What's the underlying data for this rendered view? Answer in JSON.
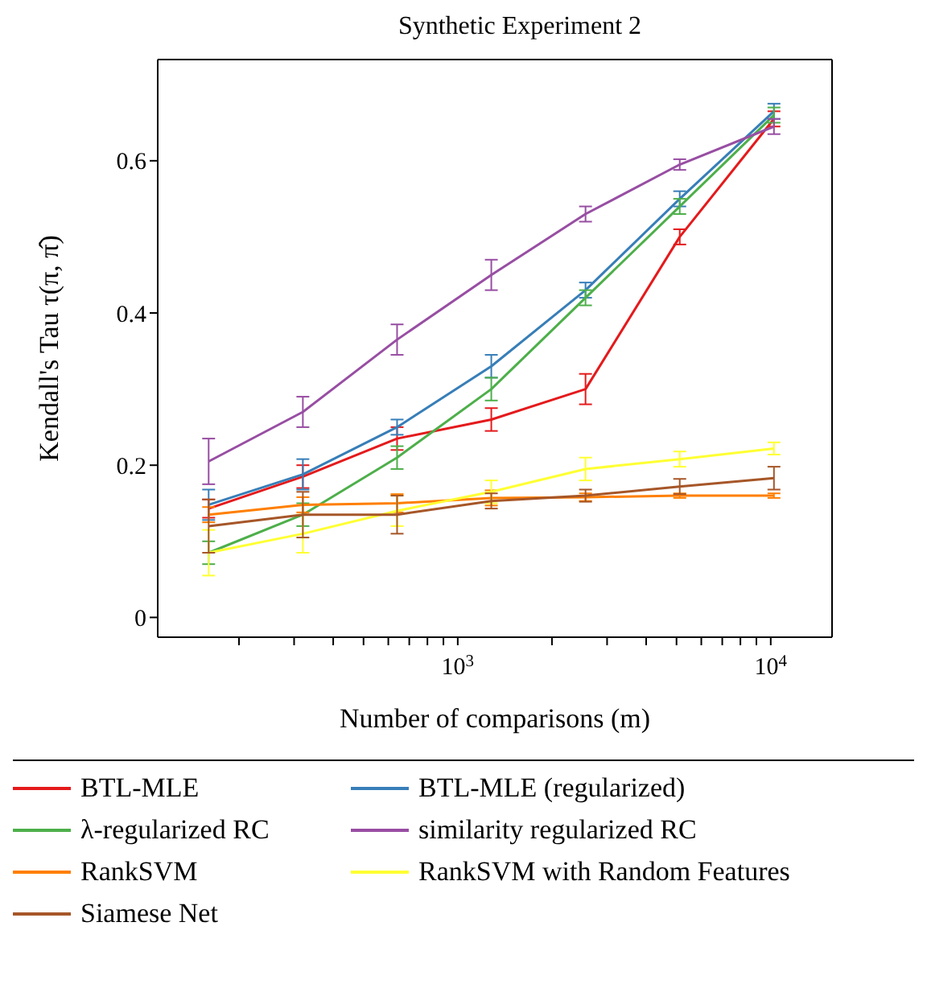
{
  "chart_data": {
    "type": "line",
    "title": "Synthetic Experiment 2",
    "xlabel": "Number of comparisons (m)",
    "ylabel": "Kendall's Tau τ(π, π̂)",
    "x": [
      160,
      320,
      640,
      1280,
      2560,
      5120,
      10240
    ],
    "log": "x",
    "xlim": [
      110,
      15700
    ],
    "xticks": [
      {
        "value": 200,
        "label": null
      },
      {
        "value": 300,
        "label": null
      },
      {
        "value": 400,
        "label": null
      },
      {
        "value": 500,
        "label": null
      },
      {
        "value": 600,
        "label": null
      },
      {
        "value": 700,
        "label": null
      },
      {
        "value": 800,
        "label": null
      },
      {
        "value": 900,
        "label": null
      },
      {
        "value": 1000,
        "label": "10$^{3}$"
      },
      {
        "value": 2000,
        "label": null
      },
      {
        "value": 3000,
        "label": null
      },
      {
        "value": 4000,
        "label": null
      },
      {
        "value": 5000,
        "label": null
      },
      {
        "value": 6000,
        "label": null
      },
      {
        "value": 7000,
        "label": null
      },
      {
        "value": 8000,
        "label": null
      },
      {
        "value": 9000,
        "label": null
      },
      {
        "value": 10000,
        "label": "10$^{4}$"
      }
    ],
    "ylim": [
      -0.026,
      0.733
    ],
    "yticks": [
      0,
      0.2,
      0.4,
      0.6
    ],
    "grid": false,
    "legend": "bottom",
    "marker": "none",
    "line_style": "solid",
    "series": [
      {
        "name": "BTL-MLE",
        "color": "#e41a1c",
        "values": [
          0.143,
          0.185,
          0.235,
          0.26,
          0.3,
          0.5,
          0.655
        ],
        "errors": [
          0.012,
          0.015,
          0.015,
          0.015,
          0.02,
          0.01,
          0.01
        ]
      },
      {
        "name": "BTL-MLE (regularized)",
        "color": "#377eb8",
        "values": [
          0.148,
          0.188,
          0.25,
          0.33,
          0.43,
          0.55,
          0.665
        ],
        "errors": [
          0.02,
          0.02,
          0.01,
          0.015,
          0.01,
          0.01,
          0.01
        ]
      },
      {
        "name": "λ-regularized RC",
        "color": "#4daf4a",
        "values": [
          0.085,
          0.135,
          0.21,
          0.3,
          0.42,
          0.54,
          0.66
        ],
        "errors": [
          0.015,
          0.015,
          0.015,
          0.015,
          0.01,
          0.01,
          0.01
        ]
      },
      {
        "name": "similarity regularized RC",
        "color": "#984ea3",
        "values": [
          0.205,
          0.27,
          0.365,
          0.45,
          0.53,
          0.595,
          0.645
        ],
        "errors": [
          0.03,
          0.02,
          0.02,
          0.02,
          0.01,
          0.007,
          0.01
        ]
      },
      {
        "name": "RankSVM",
        "color": "#ff7f00",
        "values": [
          0.135,
          0.148,
          0.15,
          0.157,
          0.158,
          0.16,
          0.16
        ],
        "errors": [
          0.01,
          0.01,
          0.012,
          0.01,
          0.005,
          0.003,
          0.003
        ]
      },
      {
        "name": "RankSVM with Random Features",
        "color": "#ffff33",
        "values": [
          0.085,
          0.11,
          0.14,
          0.165,
          0.195,
          0.208,
          0.222
        ],
        "errors": [
          0.03,
          0.025,
          0.02,
          0.015,
          0.015,
          0.01,
          0.008
        ]
      },
      {
        "name": "Siamese Net",
        "color": "#a65628",
        "values": [
          0.12,
          0.135,
          0.135,
          0.153,
          0.16,
          0.172,
          0.183
        ],
        "errors": [
          0.035,
          0.03,
          0.025,
          0.01,
          0.008,
          0.01,
          0.015
        ]
      }
    ]
  }
}
